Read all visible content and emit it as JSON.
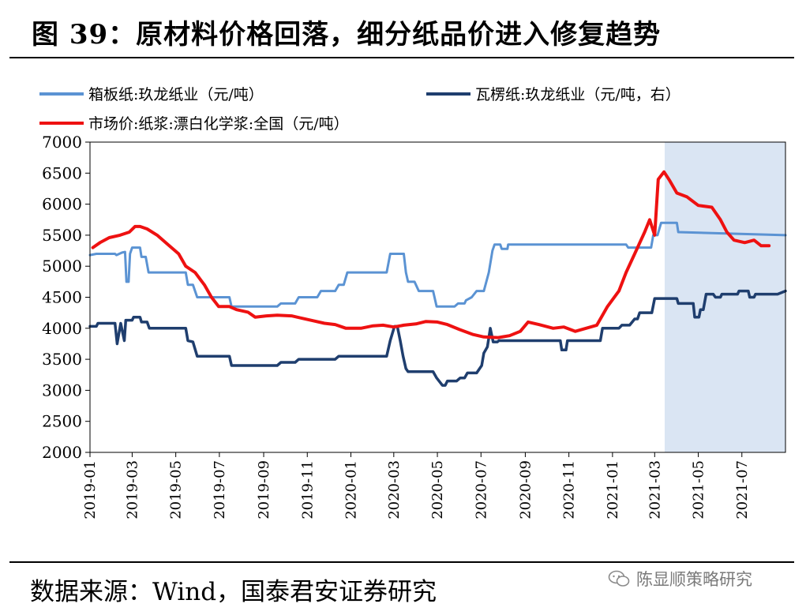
{
  "header": {
    "title": "图 39：原材料价格回落，细分纸品价进入修复趋势"
  },
  "footer": {
    "source": "数据来源：Wind，国泰君安证券研究",
    "watermark": "陈显顺策略研究"
  },
  "colors": {
    "boxboard": "#5b93d3",
    "corrugated": "#1f3e6e",
    "pulp": "#ee1111",
    "shade": "#dae5f3"
  },
  "chart_data": {
    "type": "line",
    "title": "",
    "xlabel": "",
    "ylabel": "",
    "ylim": [
      2000,
      7000
    ],
    "yticks": [
      "2000",
      "2500",
      "3000",
      "3500",
      "4000",
      "4500",
      "5000",
      "5500",
      "6000",
      "6500",
      "7000"
    ],
    "xlim": [
      "2019-01-01",
      "2021-08-31"
    ],
    "xticks": [
      "2019-01",
      "2019-03",
      "2019-05",
      "2019-07",
      "2019-09",
      "2019-11",
      "2020-01",
      "2020-03",
      "2020-05",
      "2020-07",
      "2020-09",
      "2020-11",
      "2021-01",
      "2021-03",
      "2021-05",
      "2021-07"
    ],
    "legend_position": "top",
    "shaded_region": [
      "2021-03-15",
      "2021-08-31"
    ],
    "series": [
      {
        "name": "箱板纸:玖龙纸业（元/吨）",
        "axis": "left",
        "points": [
          [
            "2019-01-01",
            5180
          ],
          [
            "2019-01-10",
            5200
          ],
          [
            "2019-02-05",
            5200
          ],
          [
            "2019-02-07",
            5180
          ],
          [
            "2019-02-15",
            5220
          ],
          [
            "2019-02-19",
            5230
          ],
          [
            "2019-02-21",
            4750
          ],
          [
            "2019-02-24",
            4750
          ],
          [
            "2019-02-26",
            5200
          ],
          [
            "2019-03-01",
            5300
          ],
          [
            "2019-03-12",
            5300
          ],
          [
            "2019-03-14",
            5150
          ],
          [
            "2019-03-20",
            5150
          ],
          [
            "2019-03-24",
            4900
          ],
          [
            "2019-04-01",
            4900
          ],
          [
            "2019-05-15",
            4900
          ],
          [
            "2019-05-18",
            4700
          ],
          [
            "2019-05-25",
            4700
          ],
          [
            "2019-05-31",
            4500
          ],
          [
            "2019-07-15",
            4500
          ],
          [
            "2019-07-18",
            4350
          ],
          [
            "2019-09-20",
            4350
          ],
          [
            "2019-09-25",
            4400
          ],
          [
            "2019-10-15",
            4400
          ],
          [
            "2019-10-20",
            4500
          ],
          [
            "2019-11-15",
            4500
          ],
          [
            "2019-11-20",
            4600
          ],
          [
            "2019-12-10",
            4600
          ],
          [
            "2019-12-15",
            4700
          ],
          [
            "2019-12-22",
            4700
          ],
          [
            "2019-12-27",
            4900
          ],
          [
            "2020-02-20",
            4900
          ],
          [
            "2020-02-25",
            5200
          ],
          [
            "2020-03-15",
            5200
          ],
          [
            "2020-03-18",
            4900
          ],
          [
            "2020-03-21",
            4750
          ],
          [
            "2020-03-30",
            4750
          ],
          [
            "2020-04-05",
            4600
          ],
          [
            "2020-04-25",
            4600
          ],
          [
            "2020-04-30",
            4350
          ],
          [
            "2020-05-25",
            4350
          ],
          [
            "2020-05-30",
            4400
          ],
          [
            "2020-06-08",
            4400
          ],
          [
            "2020-06-10",
            4450
          ],
          [
            "2020-06-18",
            4500
          ],
          [
            "2020-06-25",
            4600
          ],
          [
            "2020-07-05",
            4600
          ],
          [
            "2020-07-12",
            4900
          ],
          [
            "2020-07-17",
            5250
          ],
          [
            "2020-07-20",
            5350
          ],
          [
            "2020-07-28",
            5350
          ],
          [
            "2020-07-30",
            5280
          ],
          [
            "2020-08-07",
            5280
          ],
          [
            "2020-08-08",
            5350
          ],
          [
            "2021-01-20",
            5350
          ],
          [
            "2021-01-23",
            5300
          ],
          [
            "2021-02-24",
            5300
          ],
          [
            "2021-02-27",
            5500
          ],
          [
            "2021-03-05",
            5500
          ],
          [
            "2021-03-10",
            5700
          ],
          [
            "2021-04-01",
            5700
          ],
          [
            "2021-04-03",
            5550
          ],
          [
            "2021-08-31",
            5500
          ]
        ]
      },
      {
        "name": "瓦楞纸:玖龙纸业（元/吨，右）",
        "axis": "right",
        "points": [
          [
            "2019-01-01",
            4030
          ],
          [
            "2019-01-10",
            4030
          ],
          [
            "2019-01-12",
            4080
          ],
          [
            "2019-02-05",
            4080
          ],
          [
            "2019-02-08",
            3750
          ],
          [
            "2019-02-13",
            4080
          ],
          [
            "2019-02-18",
            3800
          ],
          [
            "2019-02-20",
            4130
          ],
          [
            "2019-03-01",
            4130
          ],
          [
            "2019-03-03",
            4180
          ],
          [
            "2019-03-12",
            4180
          ],
          [
            "2019-03-14",
            4100
          ],
          [
            "2019-03-22",
            4100
          ],
          [
            "2019-03-25",
            4000
          ],
          [
            "2019-05-15",
            4000
          ],
          [
            "2019-05-18",
            3800
          ],
          [
            "2019-05-25",
            3780
          ],
          [
            "2019-05-31",
            3550
          ],
          [
            "2019-07-15",
            3550
          ],
          [
            "2019-07-18",
            3400
          ],
          [
            "2019-09-20",
            3400
          ],
          [
            "2019-09-25",
            3450
          ],
          [
            "2019-10-15",
            3450
          ],
          [
            "2019-10-20",
            3500
          ],
          [
            "2019-12-10",
            3500
          ],
          [
            "2019-12-15",
            3550
          ],
          [
            "2020-02-20",
            3550
          ],
          [
            "2020-02-25",
            3800
          ],
          [
            "2020-03-02",
            4030
          ],
          [
            "2020-03-06",
            4030
          ],
          [
            "2020-03-10",
            3800
          ],
          [
            "2020-03-14",
            3550
          ],
          [
            "2020-03-18",
            3350
          ],
          [
            "2020-03-21",
            3300
          ],
          [
            "2020-04-25",
            3300
          ],
          [
            "2020-04-30",
            3200
          ],
          [
            "2020-05-08",
            3080
          ],
          [
            "2020-05-12",
            3080
          ],
          [
            "2020-05-15",
            3150
          ],
          [
            "2020-05-28",
            3150
          ],
          [
            "2020-06-02",
            3200
          ],
          [
            "2020-06-08",
            3200
          ],
          [
            "2020-06-12",
            3280
          ],
          [
            "2020-06-25",
            3280
          ],
          [
            "2020-07-02",
            3400
          ],
          [
            "2020-07-05",
            3600
          ],
          [
            "2020-07-10",
            3700
          ],
          [
            "2020-07-14",
            4000
          ],
          [
            "2020-07-18",
            3780
          ],
          [
            "2020-07-24",
            3780
          ],
          [
            "2020-07-26",
            3800
          ],
          [
            "2020-10-20",
            3800
          ],
          [
            "2020-10-22",
            3650
          ],
          [
            "2020-10-28",
            3650
          ],
          [
            "2020-10-30",
            3800
          ],
          [
            "2020-12-15",
            3800
          ],
          [
            "2020-12-18",
            4000
          ],
          [
            "2021-01-10",
            4000
          ],
          [
            "2021-01-14",
            4050
          ],
          [
            "2021-01-25",
            4050
          ],
          [
            "2021-02-01",
            4150
          ],
          [
            "2021-02-05",
            4150
          ],
          [
            "2021-02-08",
            4250
          ],
          [
            "2021-02-25",
            4250
          ],
          [
            "2021-03-01",
            4480
          ],
          [
            "2021-04-01",
            4480
          ],
          [
            "2021-04-03",
            4400
          ],
          [
            "2021-04-24",
            4400
          ],
          [
            "2021-04-26",
            4180
          ],
          [
            "2021-05-02",
            4180
          ],
          [
            "2021-05-04",
            4300
          ],
          [
            "2021-05-08",
            4300
          ],
          [
            "2021-05-12",
            4550
          ],
          [
            "2021-05-22",
            4550
          ],
          [
            "2021-05-25",
            4500
          ],
          [
            "2021-06-01",
            4500
          ],
          [
            "2021-06-03",
            4550
          ],
          [
            "2021-06-25",
            4550
          ],
          [
            "2021-06-27",
            4600
          ],
          [
            "2021-07-10",
            4600
          ],
          [
            "2021-07-12",
            4500
          ],
          [
            "2021-07-18",
            4500
          ],
          [
            "2021-07-20",
            4550
          ],
          [
            "2021-08-20",
            4550
          ],
          [
            "2021-08-31",
            4600
          ]
        ]
      },
      {
        "name": "市场价:纸浆:漂白化学浆:全国（元/吨）",
        "axis": "left",
        "points": [
          [
            "2019-01-05",
            5300
          ],
          [
            "2019-01-15",
            5380
          ],
          [
            "2019-01-28",
            5460
          ],
          [
            "2019-02-12",
            5500
          ],
          [
            "2019-02-25",
            5550
          ],
          [
            "2019-03-05",
            5640
          ],
          [
            "2019-03-12",
            5640
          ],
          [
            "2019-03-22",
            5600
          ],
          [
            "2019-04-05",
            5500
          ],
          [
            "2019-04-20",
            5350
          ],
          [
            "2019-05-05",
            5200
          ],
          [
            "2019-05-15",
            5000
          ],
          [
            "2019-05-28",
            4900
          ],
          [
            "2019-06-10",
            4700
          ],
          [
            "2019-06-20",
            4500
          ],
          [
            "2019-06-30",
            4350
          ],
          [
            "2019-07-15",
            4350
          ],
          [
            "2019-07-25",
            4300
          ],
          [
            "2019-08-10",
            4260
          ],
          [
            "2019-08-20",
            4180
          ],
          [
            "2019-09-05",
            4200
          ],
          [
            "2019-09-20",
            4210
          ],
          [
            "2019-10-10",
            4200
          ],
          [
            "2019-10-25",
            4160
          ],
          [
            "2019-11-10",
            4120
          ],
          [
            "2019-11-25",
            4080
          ],
          [
            "2019-12-10",
            4060
          ],
          [
            "2019-12-25",
            4000
          ],
          [
            "2020-01-15",
            4000
          ],
          [
            "2020-02-01",
            4040
          ],
          [
            "2020-02-15",
            4050
          ],
          [
            "2020-03-01",
            4020
          ],
          [
            "2020-03-15",
            4050
          ],
          [
            "2020-04-01",
            4070
          ],
          [
            "2020-04-15",
            4110
          ],
          [
            "2020-05-01",
            4100
          ],
          [
            "2020-05-15",
            4060
          ],
          [
            "2020-06-01",
            3980
          ],
          [
            "2020-06-20",
            3900
          ],
          [
            "2020-07-05",
            3860
          ],
          [
            "2020-07-25",
            3850
          ],
          [
            "2020-08-10",
            3880
          ],
          [
            "2020-08-25",
            3950
          ],
          [
            "2020-09-05",
            4100
          ],
          [
            "2020-09-20",
            4060
          ],
          [
            "2020-10-10",
            4000
          ],
          [
            "2020-10-25",
            4020
          ],
          [
            "2020-11-10",
            3950
          ],
          [
            "2020-11-25",
            4000
          ],
          [
            "2020-12-10",
            4050
          ],
          [
            "2020-12-25",
            4350
          ],
          [
            "2021-01-10",
            4600
          ],
          [
            "2021-01-20",
            4900
          ],
          [
            "2021-02-01",
            5200
          ],
          [
            "2021-02-15",
            5550
          ],
          [
            "2021-02-22",
            5750
          ],
          [
            "2021-03-01",
            5500
          ],
          [
            "2021-03-06",
            6400
          ],
          [
            "2021-03-14",
            6520
          ],
          [
            "2021-03-22",
            6380
          ],
          [
            "2021-04-01",
            6180
          ],
          [
            "2021-04-15",
            6120
          ],
          [
            "2021-05-01",
            5980
          ],
          [
            "2021-05-20",
            5950
          ],
          [
            "2021-06-01",
            5750
          ],
          [
            "2021-06-10",
            5550
          ],
          [
            "2021-06-20",
            5420
          ],
          [
            "2021-07-05",
            5380
          ],
          [
            "2021-07-18",
            5420
          ],
          [
            "2021-07-28",
            5330
          ],
          [
            "2021-08-08",
            5330
          ]
        ]
      }
    ]
  }
}
